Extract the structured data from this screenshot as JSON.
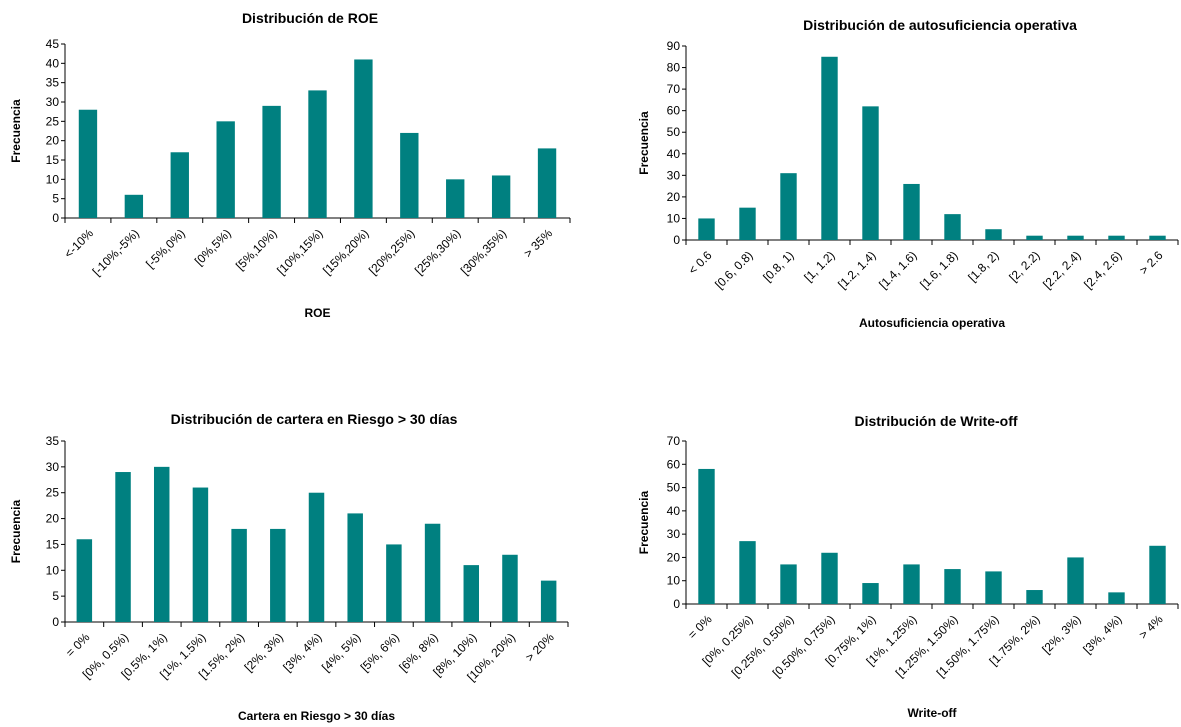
{
  "chart_data": [
    {
      "type": "bar",
      "title": "Distribución de ROE",
      "x_label": "ROE",
      "y_label": "Frecuencia",
      "categories": [
        "<-10%",
        "[-10%,-5%)",
        "[-5%,0%)",
        "[0%,5%)",
        "[5%,10%)",
        "[10%,15%)",
        "[15%,20%)",
        "[20%,25%)",
        "[25%,30%)",
        "[30%,35%)",
        "> 35%"
      ],
      "values": [
        28,
        6,
        17,
        25,
        29,
        33,
        41,
        22,
        10,
        11,
        18
      ],
      "color": "#008080",
      "ylim": [
        0,
        45
      ],
      "yticks": [
        0,
        5,
        10,
        15,
        20,
        25,
        30,
        35,
        40,
        45
      ]
    },
    {
      "type": "bar",
      "title": "Distribución de autosuficiencia operativa",
      "x_label": "Autosuficiencia operativa",
      "y_label": "Frecuencia",
      "categories": [
        "< 0.6",
        "[0.6, 0.8)",
        "[0.8, 1)",
        "[1, 1.2)",
        "[1.2, 1.4)",
        "[1.4, 1.6)",
        "[1.6, 1.8)",
        "[1.8, 2)",
        "[2, 2.2)",
        "[2.2, 2.4)",
        "[2.4, 2.6)",
        "> 2.6"
      ],
      "values": [
        10,
        15,
        31,
        85,
        62,
        26,
        12,
        5,
        2,
        2,
        2,
        2
      ],
      "color": "#008080",
      "ylim": [
        0,
        90
      ],
      "yticks": [
        0,
        10,
        20,
        30,
        40,
        50,
        60,
        70,
        80,
        90
      ]
    },
    {
      "type": "bar",
      "title": "Distribución de cartera en Riesgo > 30 días",
      "x_label": "Cartera en Riesgo > 30 días",
      "y_label": "Frecuencia",
      "categories": [
        "= 0%",
        "[0%, 0.5%)",
        "[0.5%, 1%)",
        "[1%, 1.5%)",
        "[1.5%, 2%)",
        "[2%, 3%)",
        "[3%, 4%)",
        "[4%, 5%)",
        "[5%, 6%)",
        "[6%, 8%)",
        "[8%, 10%)",
        "[10%, 20%)",
        "> 20%"
      ],
      "values": [
        16,
        29,
        30,
        26,
        18,
        18,
        25,
        21,
        15,
        19,
        11,
        13,
        8
      ],
      "color": "#008080",
      "ylim": [
        0,
        35
      ],
      "yticks": [
        0,
        5,
        10,
        15,
        20,
        25,
        30,
        35
      ]
    },
    {
      "type": "bar",
      "title": "Distribución de Write-off",
      "x_label": "Write-off",
      "y_label": "Frecuencia",
      "categories": [
        "= 0%",
        "[0%, 0.25%)",
        "[0.25%, 0.50%)",
        "[0.50%, 0.75%)",
        "[0.75%, 1%)",
        "[1%, 1.25%)",
        "[1.25%, 1.50%)",
        "[1.50%, 1.75%)",
        "[1.75%, 2%)",
        "[2%, 3%)",
        "[3%, 4%)",
        "> 4%"
      ],
      "values": [
        58,
        27,
        17,
        22,
        9,
        17,
        15,
        14,
        6,
        20,
        5,
        25
      ],
      "color": "#008080",
      "ylim": [
        0,
        70
      ],
      "yticks": [
        0,
        10,
        20,
        30,
        40,
        50,
        60,
        70
      ]
    }
  ]
}
